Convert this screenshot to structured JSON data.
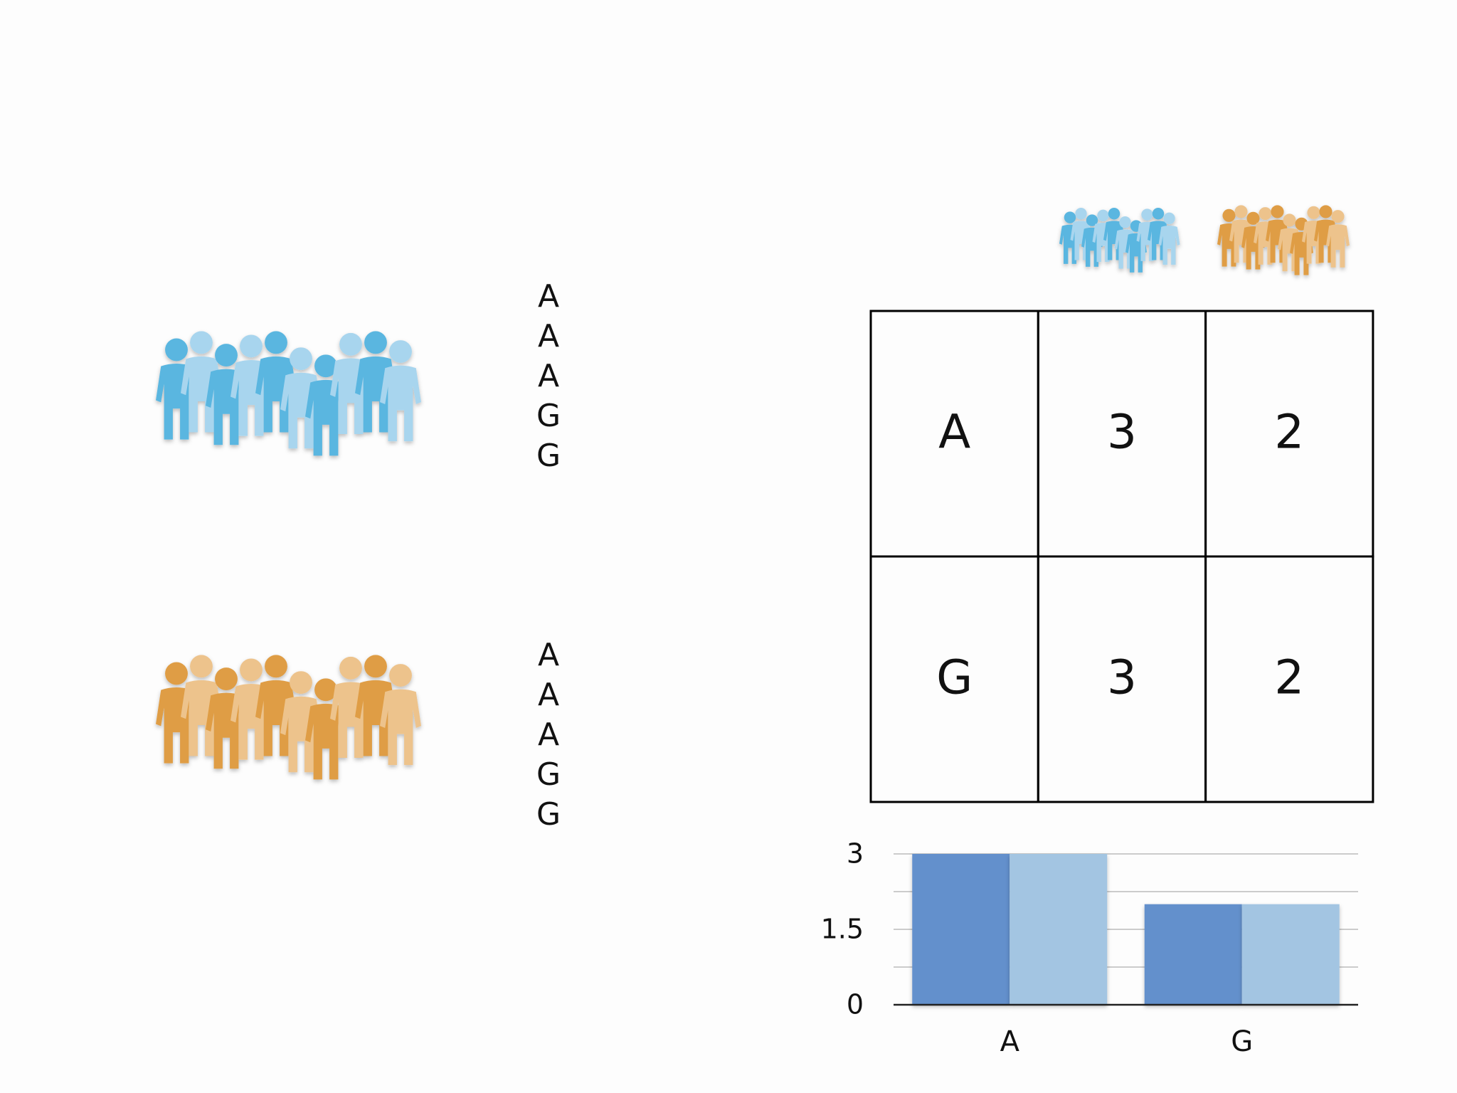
{
  "sequences": [
    [
      "A",
      "A",
      "A",
      "G",
      "G"
    ],
    [
      "A",
      "A",
      "A",
      "G",
      "G"
    ]
  ],
  "table": {
    "rows": [
      [
        "A",
        3,
        2
      ],
      [
        "G",
        3,
        2
      ]
    ]
  },
  "chart_data": {
    "type": "bar",
    "categories": [
      "A",
      "G"
    ],
    "series": [
      {
        "color": "#6490cc",
        "values": [
          3,
          2
        ]
      },
      {
        "color": "#a3c5e2",
        "values": [
          3,
          2
        ]
      }
    ],
    "ylim": [
      0,
      3
    ],
    "yticks": [
      0,
      1.5,
      3
    ],
    "minor_yticks": [
      0.75,
      2.25
    ],
    "grid": true
  }
}
